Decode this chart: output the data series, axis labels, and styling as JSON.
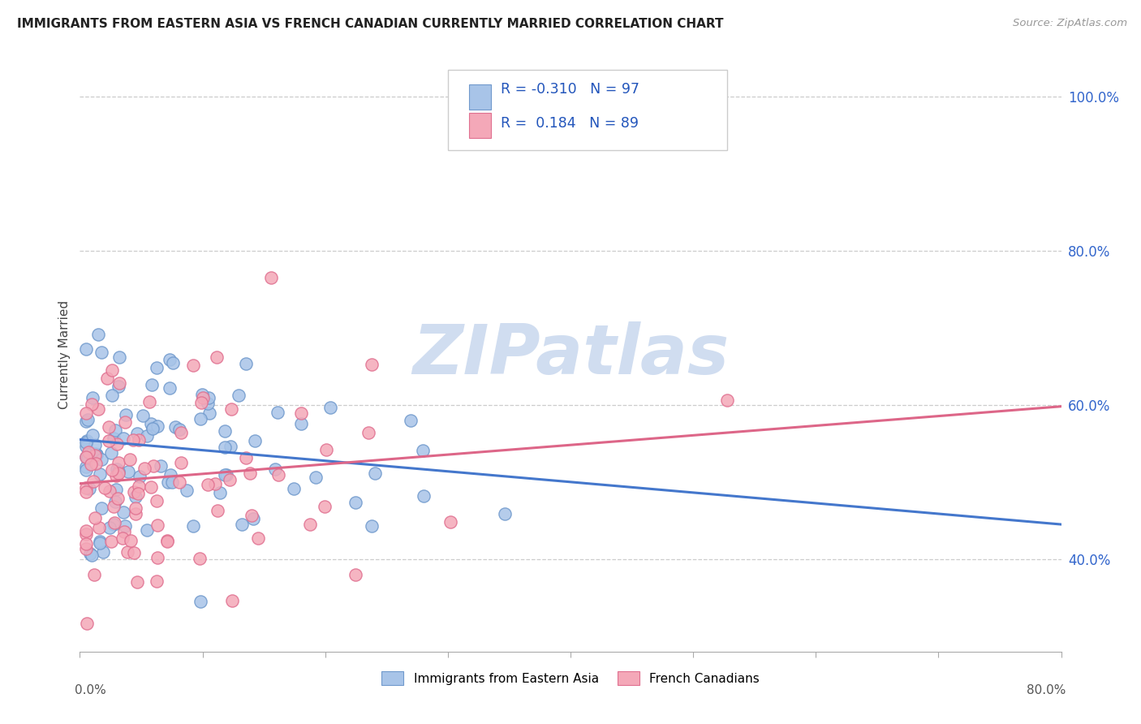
{
  "title": "IMMIGRANTS FROM EASTERN ASIA VS FRENCH CANADIAN CURRENTLY MARRIED CORRELATION CHART",
  "source": "Source: ZipAtlas.com",
  "ylabel": "Currently Married",
  "legend_label1": "Immigrants from Eastern Asia",
  "legend_label2": "French Canadians",
  "r1": "-0.310",
  "n1": "97",
  "r2": "0.184",
  "n2": "89",
  "blue_color": "#a8c4e8",
  "pink_color": "#f4a8b8",
  "blue_edge_color": "#7099cc",
  "pink_edge_color": "#e07090",
  "blue_line_color": "#4477cc",
  "pink_line_color": "#dd6688",
  "watermark_color": "#d0ddf0",
  "xlim": [
    0.0,
    0.8
  ],
  "ylim": [
    0.28,
    1.05
  ],
  "yticks": [
    0.4,
    0.6,
    0.8,
    1.0
  ],
  "ytick_labels": [
    "40.0%",
    "60.0%",
    "80.0%",
    "100.0%"
  ],
  "blue_line_x0": 0.0,
  "blue_line_y0": 0.555,
  "blue_line_x1": 0.8,
  "blue_line_y1": 0.445,
  "pink_line_x0": 0.0,
  "pink_line_y0": 0.498,
  "pink_line_x1": 0.8,
  "pink_line_y1": 0.598
}
